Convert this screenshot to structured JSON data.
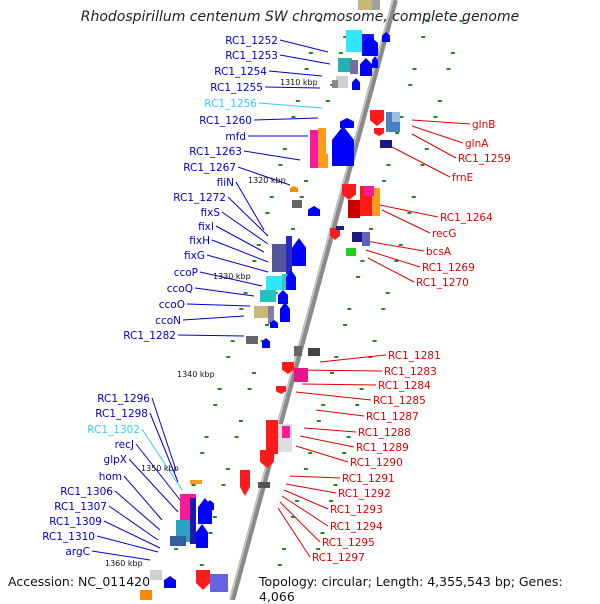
{
  "title": "Rhodospirillum centenum SW chromosome, complete genome",
  "accession": "Accession: NC_011420",
  "topology": "Topology: circular; Length: 4,355,543 bp; Genes: 4,066",
  "colors": {
    "left_label": "#0000cc",
    "left_label_alt": "#33ccff",
    "right_label": "#dd0000",
    "backbone": "#8a8a8a"
  },
  "left_labels": [
    "RC1_1252",
    "RC1_1253",
    "RC1_1254",
    "RC1_1255",
    "RC1_1256",
    "RC1_1260",
    "mfd",
    "RC1_1263",
    "RC1_1267",
    "fliN",
    "RC1_1272",
    "fixS",
    "fixI",
    "fixH",
    "fixG",
    "ccoP",
    "ccoQ",
    "ccoO",
    "ccoN",
    "RC1_1282",
    "RC1_1296",
    "RC1_1298",
    "RC1_1302",
    "recJ",
    "glpX",
    "hom",
    "RC1_1306",
    "RC1_1307",
    "RC1_1309",
    "RC1_1310",
    "argC"
  ],
  "right_labels": [
    "glnB",
    "glnA",
    "RC1_1259",
    "frnE",
    "RC1_1264",
    "recG",
    "bcsA",
    "RC1_1269",
    "RC1_1270",
    "RC1_1281",
    "RC1_1283",
    "RC1_1284",
    "RC1_1285",
    "RC1_1287",
    "RC1_1288",
    "RC1_1289",
    "RC1_1290",
    "RC1_1291",
    "RC1_1292",
    "RC1_1293",
    "RC1_1294",
    "RC1_1295",
    "RC1_1297"
  ],
  "kbp_labels": [
    "1310 kbp",
    "1320 kbp",
    "1330 kbp",
    "1340 kbp",
    "1350 kbp",
    "1360 kbp"
  ]
}
